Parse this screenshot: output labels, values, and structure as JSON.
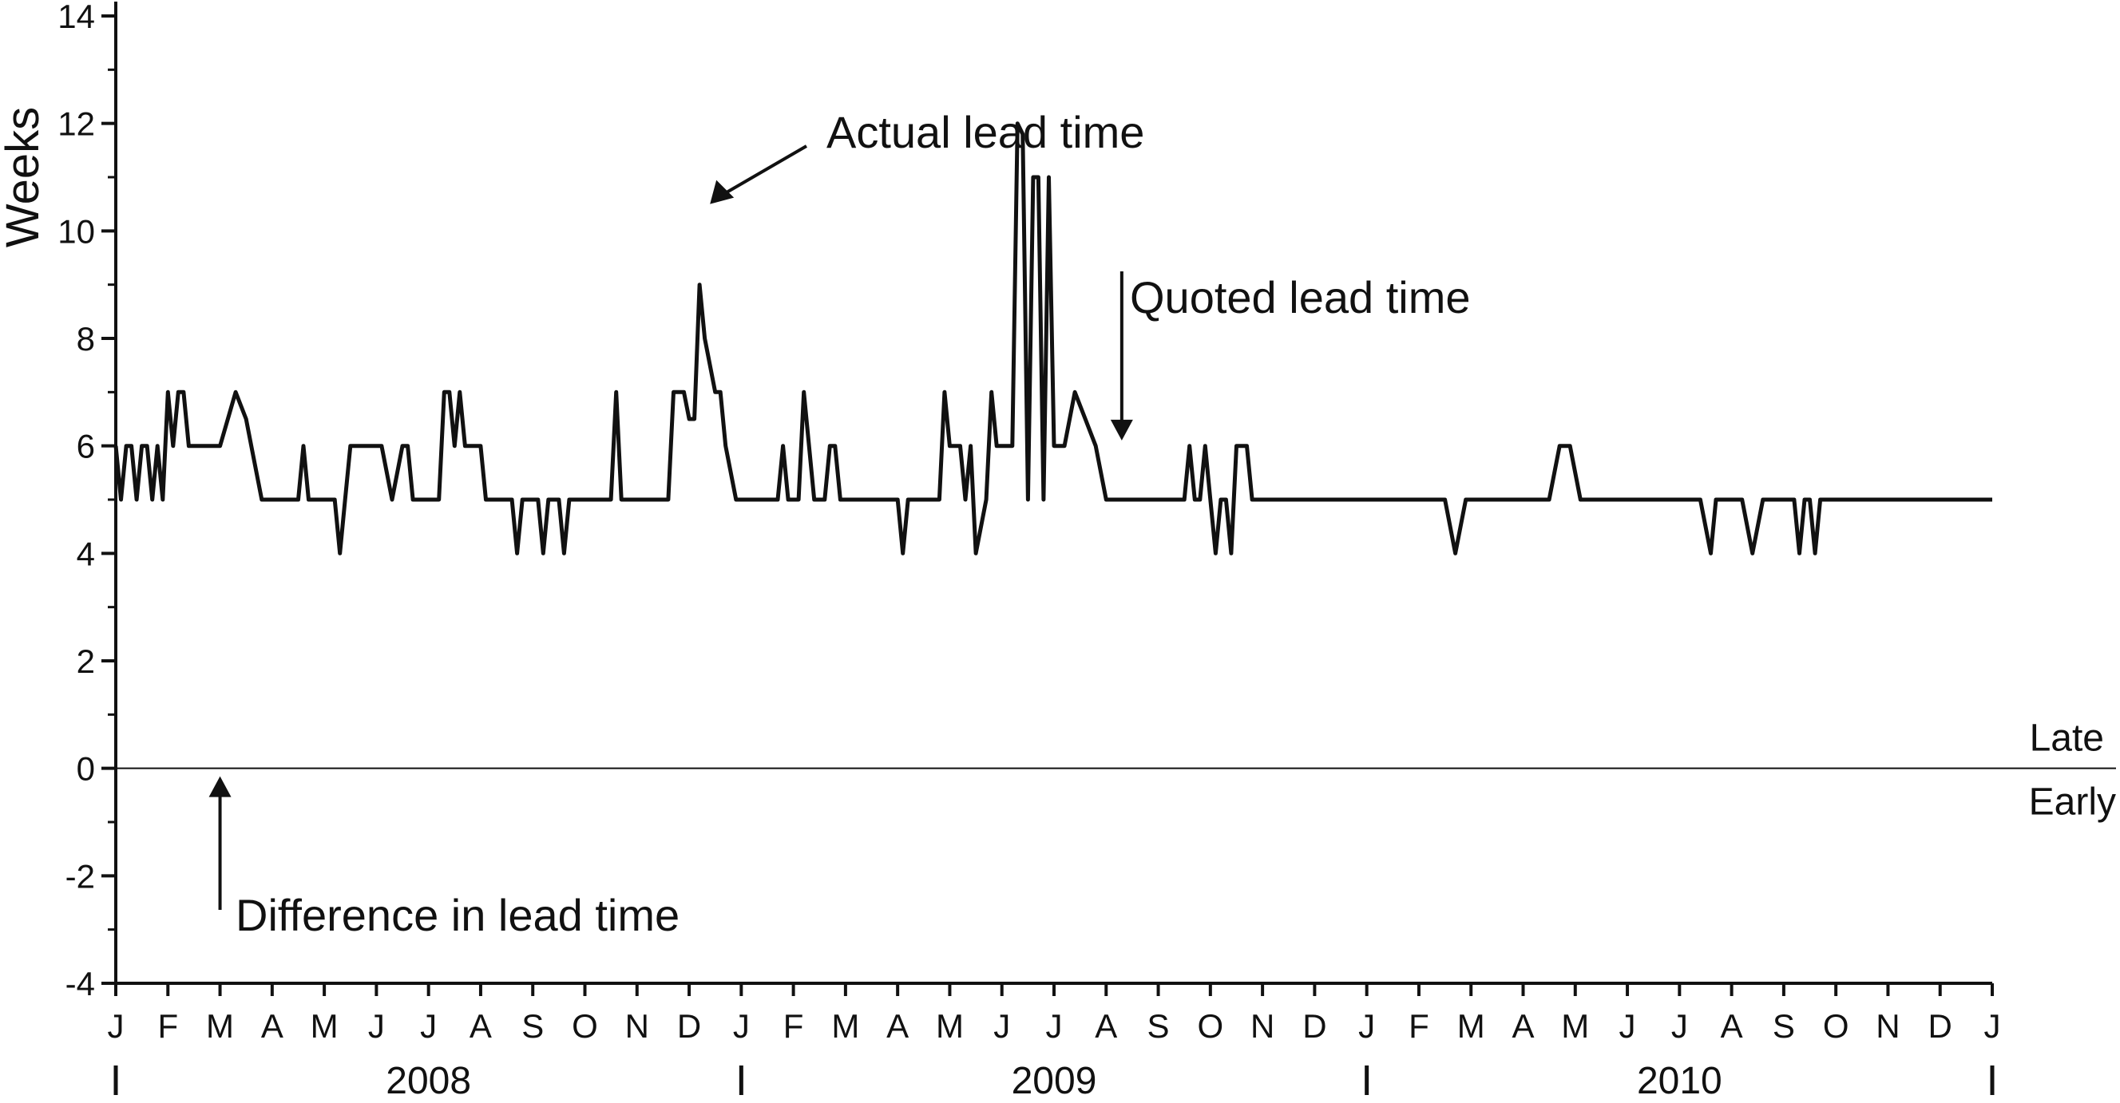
{
  "chart_data": {
    "type": "line",
    "ylabel": "Weeks",
    "ylim": [
      -4,
      14
    ],
    "yticks": [
      -4,
      -2,
      0,
      2,
      4,
      6,
      8,
      10,
      12,
      14
    ],
    "x_range_months": [
      0,
      36
    ],
    "grid": false,
    "legend": "none",
    "month_ticks": [
      "J",
      "F",
      "M",
      "A",
      "M",
      "J",
      "J",
      "A",
      "S",
      "O",
      "N",
      "D",
      "J",
      "F",
      "M",
      "A",
      "M",
      "J",
      "J",
      "A",
      "S",
      "O",
      "N",
      "D",
      "J",
      "F",
      "M",
      "A",
      "M",
      "J",
      "J",
      "A",
      "S",
      "O",
      "N",
      "D",
      "J"
    ],
    "years": [
      "2008",
      "2009",
      "2010"
    ],
    "reference_line": {
      "y": 0,
      "label_above": "Late",
      "label_below": "Early"
    },
    "annotations": [
      {
        "text": "Actual lead time",
        "x": 11.4,
        "y": 10.5
      },
      {
        "text": "Quoted lead time",
        "x": 19.3,
        "y": 6.1
      },
      {
        "text": "Difference in lead time",
        "x": 2.0,
        "y": 0
      }
    ],
    "series": [
      {
        "kind": "line",
        "points": [
          [
            0.0,
            6
          ],
          [
            0.1,
            5
          ],
          [
            0.2,
            6
          ],
          [
            0.3,
            6
          ],
          [
            0.4,
            5
          ],
          [
            0.5,
            6
          ],
          [
            0.6,
            6
          ],
          [
            0.7,
            5
          ],
          [
            0.8,
            6
          ],
          [
            0.9,
            5
          ],
          [
            1.0,
            7
          ],
          [
            1.1,
            6
          ],
          [
            1.2,
            7
          ],
          [
            1.3,
            7
          ],
          [
            1.4,
            6
          ],
          [
            1.5,
            6
          ],
          [
            1.6,
            6
          ],
          [
            1.7,
            6
          ],
          [
            1.8,
            6
          ],
          [
            1.9,
            6
          ],
          [
            2.0,
            6
          ],
          [
            2.3,
            7
          ],
          [
            2.5,
            6.5
          ],
          [
            2.6,
            6
          ],
          [
            2.8,
            5
          ],
          [
            3.0,
            5
          ],
          [
            3.2,
            5
          ],
          [
            3.4,
            5
          ],
          [
            3.5,
            5
          ],
          [
            3.6,
            6
          ],
          [
            3.7,
            5
          ],
          [
            3.8,
            5
          ],
          [
            4.0,
            5
          ],
          [
            4.2,
            5
          ],
          [
            4.3,
            4
          ],
          [
            4.4,
            5
          ],
          [
            4.5,
            6
          ],
          [
            4.7,
            6
          ],
          [
            4.9,
            6
          ],
          [
            5.1,
            6
          ],
          [
            5.3,
            5
          ],
          [
            5.5,
            6
          ],
          [
            5.6,
            6
          ],
          [
            5.7,
            5
          ],
          [
            5.9,
            5
          ],
          [
            6.0,
            5
          ],
          [
            6.2,
            5
          ],
          [
            6.3,
            7
          ],
          [
            6.4,
            7
          ],
          [
            6.5,
            6
          ],
          [
            6.6,
            7
          ],
          [
            6.7,
            6
          ],
          [
            6.8,
            6
          ],
          [
            6.9,
            6
          ],
          [
            7.0,
            6
          ],
          [
            7.1,
            5
          ],
          [
            7.3,
            5
          ],
          [
            7.5,
            5
          ],
          [
            7.6,
            5
          ],
          [
            7.7,
            4
          ],
          [
            7.8,
            5
          ],
          [
            7.9,
            5
          ],
          [
            8.0,
            5
          ],
          [
            8.1,
            5
          ],
          [
            8.2,
            4
          ],
          [
            8.3,
            5
          ],
          [
            8.4,
            5
          ],
          [
            8.5,
            5
          ],
          [
            8.6,
            4
          ],
          [
            8.7,
            5
          ],
          [
            8.9,
            5
          ],
          [
            9.1,
            5
          ],
          [
            9.3,
            5
          ],
          [
            9.5,
            5
          ],
          [
            9.6,
            7
          ],
          [
            9.7,
            5
          ],
          [
            9.8,
            5
          ],
          [
            10.0,
            5
          ],
          [
            10.2,
            5
          ],
          [
            10.4,
            5
          ],
          [
            10.6,
            5
          ],
          [
            10.7,
            7
          ],
          [
            10.9,
            7
          ],
          [
            11.0,
            6.5
          ],
          [
            11.1,
            6.5
          ],
          [
            11.2,
            9
          ],
          [
            11.3,
            8
          ],
          [
            11.5,
            7
          ],
          [
            11.6,
            7
          ],
          [
            11.7,
            6
          ],
          [
            11.9,
            5
          ],
          [
            12.0,
            5
          ],
          [
            12.1,
            5
          ],
          [
            12.3,
            5
          ],
          [
            12.5,
            5
          ],
          [
            12.7,
            5
          ],
          [
            12.8,
            6
          ],
          [
            12.9,
            5
          ],
          [
            13.0,
            5
          ],
          [
            13.1,
            5
          ],
          [
            13.2,
            7
          ],
          [
            13.3,
            6
          ],
          [
            13.4,
            5
          ],
          [
            13.6,
            5
          ],
          [
            13.7,
            6
          ],
          [
            13.8,
            6
          ],
          [
            13.9,
            5
          ],
          [
            14.1,
            5
          ],
          [
            14.3,
            5
          ],
          [
            14.5,
            5
          ],
          [
            14.6,
            5
          ],
          [
            14.8,
            5
          ],
          [
            15.0,
            5
          ],
          [
            15.1,
            4
          ],
          [
            15.2,
            5
          ],
          [
            15.3,
            5
          ],
          [
            15.4,
            5
          ],
          [
            15.5,
            5
          ],
          [
            15.6,
            5
          ],
          [
            15.8,
            5
          ],
          [
            15.9,
            7
          ],
          [
            16.0,
            6
          ],
          [
            16.2,
            6
          ],
          [
            16.3,
            5
          ],
          [
            16.4,
            6
          ],
          [
            16.5,
            4
          ],
          [
            16.7,
            5
          ],
          [
            16.8,
            7
          ],
          [
            16.9,
            6
          ],
          [
            17.0,
            6
          ],
          [
            17.2,
            6
          ],
          [
            17.3,
            12
          ],
          [
            17.4,
            11.8
          ],
          [
            17.5,
            5
          ],
          [
            17.6,
            11
          ],
          [
            17.7,
            11
          ],
          [
            17.8,
            5
          ],
          [
            17.9,
            11
          ],
          [
            18.0,
            6
          ],
          [
            18.2,
            6
          ],
          [
            18.4,
            7
          ],
          [
            18.6,
            6.5
          ],
          [
            18.8,
            6
          ],
          [
            19.0,
            5
          ],
          [
            19.2,
            5
          ],
          [
            19.4,
            5
          ],
          [
            19.6,
            5
          ],
          [
            19.8,
            5
          ],
          [
            20.0,
            5
          ],
          [
            20.2,
            5
          ],
          [
            20.4,
            5
          ],
          [
            20.5,
            5
          ],
          [
            20.6,
            6
          ],
          [
            20.7,
            5
          ],
          [
            20.8,
            5
          ],
          [
            20.9,
            6
          ],
          [
            21.0,
            5
          ],
          [
            21.1,
            4
          ],
          [
            21.2,
            5
          ],
          [
            21.3,
            5
          ],
          [
            21.4,
            4
          ],
          [
            21.5,
            6
          ],
          [
            21.7,
            6
          ],
          [
            21.8,
            5
          ],
          [
            22.0,
            5
          ],
          [
            22.2,
            5
          ],
          [
            22.4,
            5
          ],
          [
            22.6,
            5
          ],
          [
            22.8,
            5
          ],
          [
            23.0,
            5
          ],
          [
            23.2,
            5
          ],
          [
            23.4,
            5
          ],
          [
            23.6,
            5
          ],
          [
            23.8,
            5
          ],
          [
            24.0,
            5
          ],
          [
            24.2,
            5
          ],
          [
            24.4,
            5
          ],
          [
            24.6,
            5
          ],
          [
            24.8,
            5
          ],
          [
            25.0,
            5
          ],
          [
            25.2,
            5
          ],
          [
            25.5,
            5
          ],
          [
            25.7,
            4
          ],
          [
            25.9,
            5
          ],
          [
            26.1,
            5
          ],
          [
            26.3,
            5
          ],
          [
            26.5,
            5
          ],
          [
            26.7,
            5
          ],
          [
            26.9,
            5
          ],
          [
            27.1,
            5
          ],
          [
            27.3,
            5
          ],
          [
            27.5,
            5
          ],
          [
            27.7,
            6
          ],
          [
            27.9,
            6
          ],
          [
            28.1,
            5
          ],
          [
            28.3,
            5
          ],
          [
            28.5,
            5
          ],
          [
            28.7,
            5
          ],
          [
            28.9,
            5
          ],
          [
            29.1,
            5
          ],
          [
            29.3,
            5
          ],
          [
            29.5,
            5
          ],
          [
            29.8,
            5
          ],
          [
            30.0,
            5
          ],
          [
            30.2,
            5
          ],
          [
            30.4,
            5
          ],
          [
            30.6,
            4
          ],
          [
            30.7,
            5
          ],
          [
            30.8,
            5
          ],
          [
            31.0,
            5
          ],
          [
            31.2,
            5
          ],
          [
            31.4,
            4
          ],
          [
            31.6,
            5
          ],
          [
            31.8,
            5
          ],
          [
            32.0,
            5
          ],
          [
            32.2,
            5
          ],
          [
            32.3,
            4
          ],
          [
            32.4,
            5
          ],
          [
            32.5,
            5
          ],
          [
            32.6,
            4
          ],
          [
            32.7,
            5
          ],
          [
            32.9,
            5
          ],
          [
            33.1,
            5
          ],
          [
            33.3,
            5
          ],
          [
            33.5,
            5
          ],
          [
            33.7,
            5
          ],
          [
            33.9,
            5
          ],
          [
            34.1,
            5
          ],
          [
            34.3,
            5
          ],
          [
            34.5,
            5
          ],
          [
            34.7,
            5
          ],
          [
            34.9,
            5
          ],
          [
            35.1,
            5
          ],
          [
            35.3,
            5
          ],
          [
            35.5,
            5
          ],
          [
            35.7,
            5
          ],
          [
            35.9,
            5
          ],
          [
            36.0,
            5
          ]
        ]
      }
    ]
  }
}
